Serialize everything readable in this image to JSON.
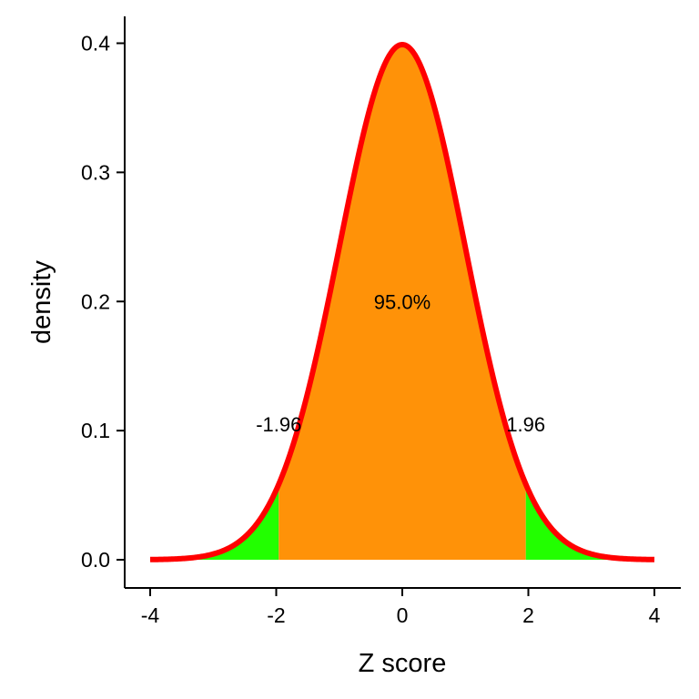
{
  "chart_data": {
    "type": "area",
    "title": "",
    "xlabel": "Z score",
    "ylabel": "density",
    "xlim": [
      -4,
      4
    ],
    "ylim": [
      0,
      0.4
    ],
    "x_ticks": [
      -4,
      -2,
      0,
      2,
      4
    ],
    "y_ticks": [
      0.0,
      0.1,
      0.2,
      0.3,
      0.4
    ],
    "x_tick_labels": [
      "-4",
      "-2",
      "0",
      "2",
      "4"
    ],
    "y_tick_labels": [
      "0.0",
      "0.1",
      "0.2",
      "0.3",
      "0.4"
    ],
    "grid": false,
    "curve": {
      "distribution": "standard normal",
      "x": [
        -4,
        -3.5,
        -3,
        -2.5,
        -2,
        -1.96,
        -1.5,
        -1,
        -0.5,
        0,
        0.5,
        1,
        1.5,
        1.96,
        2,
        2.5,
        3,
        3.5,
        4
      ],
      "y": [
        0.0001,
        0.0009,
        0.0044,
        0.0175,
        0.054,
        0.0584,
        0.1295,
        0.242,
        0.3521,
        0.3989,
        0.3521,
        0.242,
        0.1295,
        0.0584,
        0.054,
        0.0175,
        0.0044,
        0.0009,
        0.0001
      ],
      "color": "#ff0000"
    },
    "regions": [
      {
        "from": -4,
        "to": -1.96,
        "color": "#22ff00"
      },
      {
        "from": -1.96,
        "to": 1.96,
        "color": "#ff9208"
      },
      {
        "from": 1.96,
        "to": 4,
        "color": "#22ff00"
      }
    ],
    "annotations": [
      {
        "text": "95.0%",
        "x": 0,
        "y": 0.2
      },
      {
        "text": "-1.96",
        "x": -1.96,
        "y": 0.105
      },
      {
        "text": "1.96",
        "x": 1.96,
        "y": 0.105
      }
    ]
  }
}
